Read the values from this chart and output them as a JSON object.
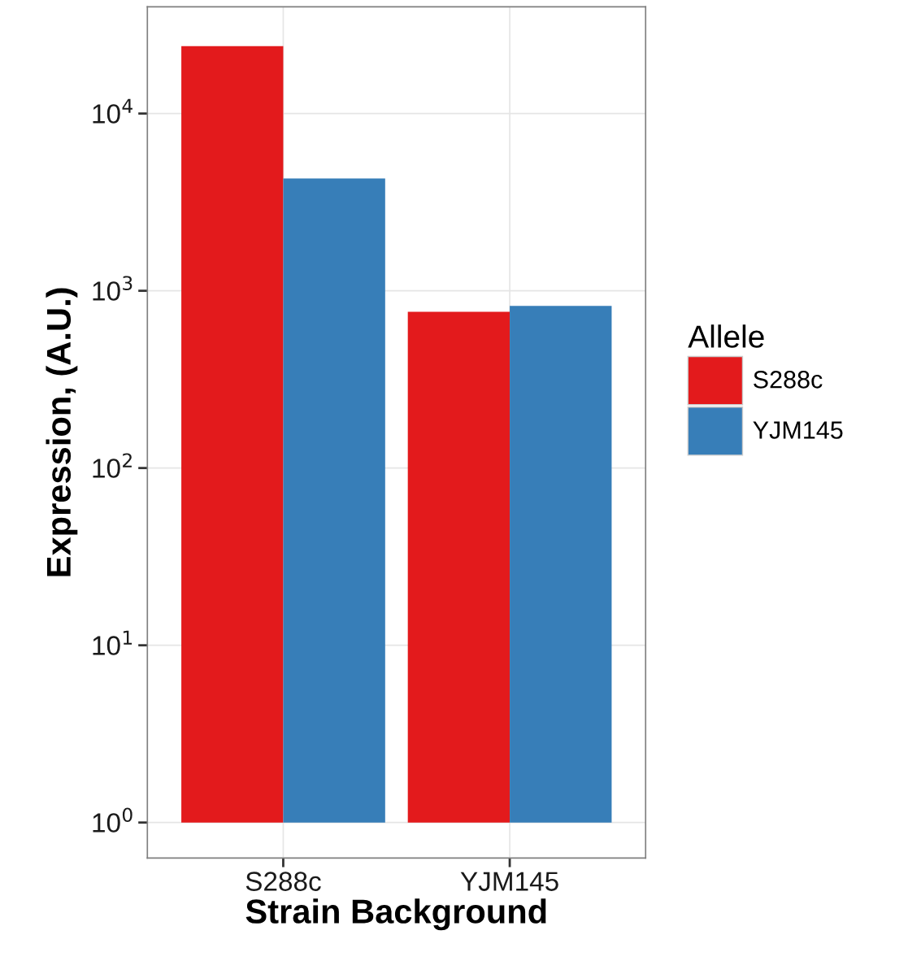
{
  "chart_data": {
    "type": "bar",
    "xlabel": "Strain Background",
    "ylabel": "Expression, (A.U.)",
    "legend_title": "Allele",
    "categories": [
      "S288c",
      "YJM145"
    ],
    "series": [
      {
        "name": "S288c",
        "color": "#e31a1c",
        "values": [
          24000,
          760
        ],
        "base": [
          1,
          1
        ]
      },
      {
        "name": "YJM145",
        "color": "#377eb8",
        "values": [
          4300,
          820
        ],
        "base": [
          1,
          1
        ]
      }
    ],
    "log": "y",
    "ylim": [
      0.63,
      40000
    ],
    "yticks": [
      {
        "value": 1,
        "label": "10$^{0}$"
      },
      {
        "value": 10,
        "label": "10$^{1}$"
      },
      {
        "value": 100,
        "label": "10$^{2}$"
      },
      {
        "value": 1000,
        "label": "10$^{3}$"
      },
      {
        "value": 10000,
        "label": "10$^{4}$"
      }
    ],
    "grid": true,
    "legend": "right"
  }
}
